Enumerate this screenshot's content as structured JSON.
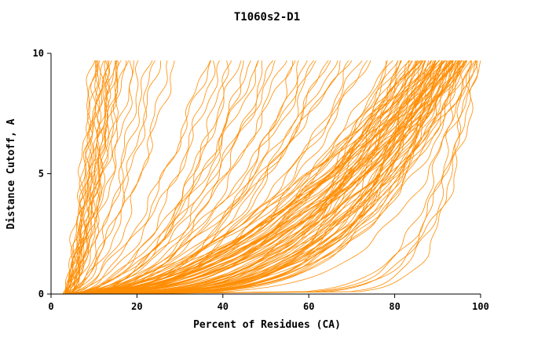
{
  "chart_data": {
    "type": "line",
    "title": "T1060s2-D1",
    "xlabel": "Percent of Residues (CA)",
    "ylabel": "Distance Cutoff, A",
    "xlim": [
      0,
      100
    ],
    "ylim": [
      0,
      10
    ],
    "x_ticks": [
      0,
      20,
      40,
      60,
      80,
      100
    ],
    "y_ticks": [
      0,
      5,
      10
    ],
    "grid": false,
    "legend": "none",
    "line_color": "#FF8C00",
    "axis_color": "#000000",
    "y_top": 9.7,
    "curve_model": "x(y) = x0 + (xend - x0) * (y/y_top)^p ; one curve per model prediction",
    "curves": [
      [
        3.0,
        9.5,
        0.7
      ],
      [
        3.2,
        10.0,
        0.6
      ],
      [
        3.5,
        10.5,
        0.75
      ],
      [
        2.8,
        11.0,
        0.55
      ],
      [
        4.0,
        11.5,
        0.8
      ],
      [
        3.1,
        12.0,
        0.5
      ],
      [
        3.6,
        12.5,
        0.65
      ],
      [
        2.9,
        13.0,
        0.7
      ],
      [
        4.2,
        13.5,
        0.6
      ],
      [
        3.3,
        14.0,
        0.8
      ],
      [
        3.7,
        14.5,
        0.55
      ],
      [
        3.0,
        15.0,
        0.72
      ],
      [
        4.1,
        15.5,
        0.62
      ],
      [
        3.4,
        16.0,
        0.78
      ],
      [
        2.7,
        16.5,
        0.58
      ],
      [
        3.8,
        17.0,
        0.68
      ],
      [
        3.2,
        12.8,
        0.45
      ],
      [
        3.9,
        11.8,
        0.85
      ],
      [
        3.5,
        13.8,
        0.52
      ],
      [
        3.0,
        10.8,
        0.66
      ],
      [
        4.3,
        14.8,
        0.74
      ],
      [
        3.6,
        16.8,
        0.6
      ],
      [
        3.0,
        19.0,
        0.6
      ],
      [
        3.5,
        21.0,
        0.5
      ],
      [
        4.0,
        23.0,
        0.65
      ],
      [
        3.2,
        25.0,
        0.55
      ],
      [
        3.8,
        27.0,
        0.45
      ],
      [
        3.4,
        29.0,
        0.6
      ],
      [
        4.1,
        20.0,
        0.7
      ],
      [
        2.9,
        24.0,
        0.5
      ],
      [
        3.0,
        36,
        0.5
      ],
      [
        3.5,
        38,
        0.42
      ],
      [
        4.0,
        40,
        0.55
      ],
      [
        3.2,
        42,
        0.38
      ],
      [
        3.7,
        44,
        0.5
      ],
      [
        4.2,
        46,
        0.44
      ],
      [
        2.9,
        48,
        0.52
      ],
      [
        3.4,
        50,
        0.36
      ],
      [
        3.9,
        52,
        0.48
      ],
      [
        4.4,
        54,
        0.4
      ],
      [
        3.1,
        56,
        0.5
      ],
      [
        3.6,
        58,
        0.34
      ],
      [
        4.1,
        60,
        0.46
      ],
      [
        2.8,
        62,
        0.52
      ],
      [
        3.3,
        64,
        0.38
      ],
      [
        3.8,
        66,
        0.44
      ],
      [
        4.3,
        68,
        0.5
      ],
      [
        3.0,
        70,
        0.35
      ],
      [
        3.5,
        72,
        0.42
      ],
      [
        4.0,
        74,
        0.48
      ],
      [
        3.2,
        37,
        0.58
      ],
      [
        3.7,
        45,
        0.32
      ],
      [
        4.2,
        53,
        0.56
      ],
      [
        2.9,
        61,
        0.3
      ],
      [
        3.4,
        69,
        0.54
      ],
      [
        3.9,
        41,
        0.36
      ],
      [
        4.4,
        49,
        0.52
      ],
      [
        3.1,
        57,
        0.33
      ],
      [
        3.6,
        65,
        0.5
      ],
      [
        4.1,
        73,
        0.37
      ],
      [
        3.0,
        78,
        0.4
      ],
      [
        3.4,
        79,
        0.33
      ],
      [
        3.8,
        80,
        0.46
      ],
      [
        4.2,
        80,
        0.28
      ],
      [
        2.9,
        81,
        0.42
      ],
      [
        3.3,
        81,
        0.25
      ],
      [
        3.7,
        82,
        0.38
      ],
      [
        4.1,
        82,
        0.3
      ],
      [
        3.1,
        83,
        0.45
      ],
      [
        3.5,
        83,
        0.27
      ],
      [
        3.9,
        84,
        0.41
      ],
      [
        4.3,
        84,
        0.24
      ],
      [
        2.8,
        84,
        0.36
      ],
      [
        3.2,
        85,
        0.48
      ],
      [
        3.6,
        85,
        0.29
      ],
      [
        4.0,
        85,
        0.43
      ],
      [
        3.0,
        86,
        0.26
      ],
      [
        3.4,
        86,
        0.39
      ],
      [
        3.8,
        86,
        0.23
      ],
      [
        4.2,
        87,
        0.44
      ],
      [
        2.9,
        87,
        0.31
      ],
      [
        3.3,
        87,
        0.47
      ],
      [
        3.7,
        88,
        0.22
      ],
      [
        4.1,
        88,
        0.37
      ],
      [
        3.1,
        88,
        0.28
      ],
      [
        3.5,
        88,
        0.5
      ],
      [
        3.9,
        89,
        0.25
      ],
      [
        4.3,
        89,
        0.4
      ],
      [
        2.8,
        89,
        0.32
      ],
      [
        3.2,
        89,
        0.21
      ],
      [
        3.6,
        90,
        0.45
      ],
      [
        4.0,
        90,
        0.27
      ],
      [
        3.0,
        90,
        0.38
      ],
      [
        3.4,
        90,
        0.24
      ],
      [
        3.8,
        90,
        0.49
      ],
      [
        4.2,
        91,
        0.3
      ],
      [
        2.9,
        91,
        0.42
      ],
      [
        3.3,
        91,
        0.22
      ],
      [
        3.7,
        91,
        0.35
      ],
      [
        4.1,
        91,
        0.26
      ],
      [
        3.1,
        92,
        0.46
      ],
      [
        3.5,
        92,
        0.29
      ],
      [
        3.9,
        92,
        0.41
      ],
      [
        4.3,
        92,
        0.23
      ],
      [
        2.8,
        92,
        0.37
      ],
      [
        3.2,
        92,
        0.5
      ],
      [
        3.6,
        93,
        0.28
      ],
      [
        4.0,
        93,
        0.43
      ],
      [
        3.0,
        93,
        0.25
      ],
      [
        3.4,
        93,
        0.39
      ],
      [
        3.8,
        93,
        0.21
      ],
      [
        4.2,
        93,
        0.33
      ],
      [
        2.9,
        94,
        0.47
      ],
      [
        3.3,
        94,
        0.26
      ],
      [
        3.7,
        94,
        0.4
      ],
      [
        4.1,
        94,
        0.3
      ],
      [
        3.1,
        94,
        0.22
      ],
      [
        3.5,
        94,
        0.44
      ],
      [
        3.9,
        95,
        0.27
      ],
      [
        4.3,
        95,
        0.36
      ],
      [
        2.8,
        95,
        0.48
      ],
      [
        3.2,
        95,
        0.24
      ],
      [
        3.6,
        95,
        0.31
      ],
      [
        4.0,
        96,
        0.42
      ],
      [
        3.0,
        96,
        0.26
      ],
      [
        3.4,
        96,
        0.38
      ],
      [
        3.8,
        96,
        0.22
      ],
      [
        4.2,
        96,
        0.34
      ],
      [
        2.9,
        97,
        0.45
      ],
      [
        3.3,
        97,
        0.28
      ],
      [
        3.7,
        97,
        0.5
      ],
      [
        4.1,
        97,
        0.24
      ],
      [
        3.1,
        85,
        0.55
      ],
      [
        3.5,
        88,
        0.52
      ],
      [
        3.9,
        91,
        0.54
      ],
      [
        4.3,
        86,
        0.58
      ],
      [
        2.8,
        90,
        0.53
      ],
      [
        3.2,
        93,
        0.56
      ],
      [
        3.6,
        87,
        0.6
      ],
      [
        4.0,
        94,
        0.57
      ],
      [
        4.0,
        95,
        0.1
      ],
      [
        5.0,
        97,
        0.08
      ],
      [
        4.5,
        99,
        0.12
      ],
      [
        5.5,
        96,
        0.09
      ],
      [
        4.2,
        98,
        0.07
      ],
      [
        6.0,
        100,
        0.11
      ],
      [
        3.5,
        98,
        0.3
      ],
      [
        3.8,
        99,
        0.25
      ],
      [
        4.0,
        100,
        0.35
      ],
      [
        3.2,
        99.5,
        0.2
      ]
    ]
  }
}
